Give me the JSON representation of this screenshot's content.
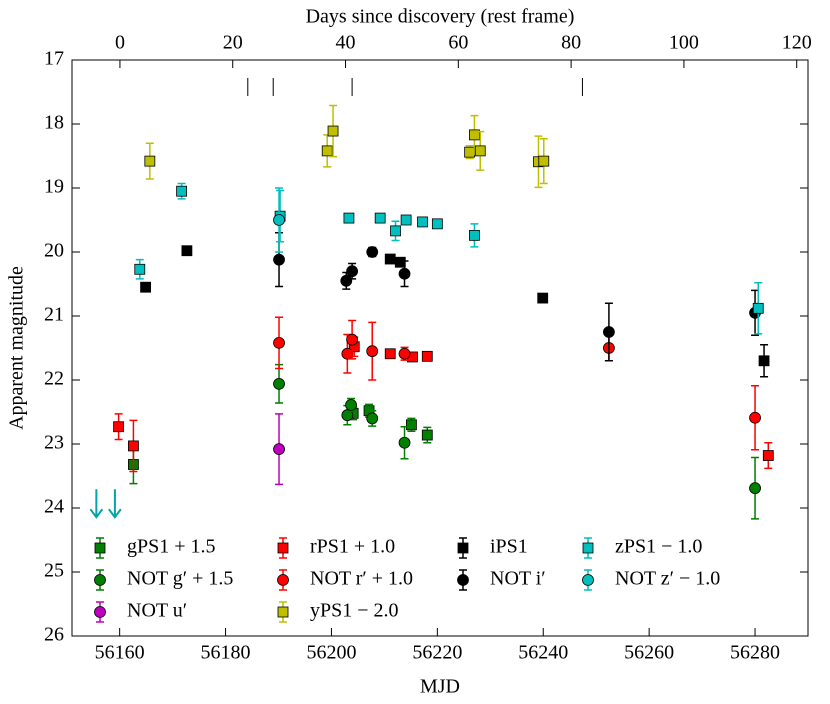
{
  "chart_data": {
    "type": "scatter",
    "xlabel": "MJD",
    "ylabel": "Apparent magnitude",
    "x2label": "Days since discovery (rest frame)",
    "xlim": [
      56151,
      56290
    ],
    "xticks": [
      56160,
      56180,
      56200,
      56220,
      56240,
      56260,
      56280
    ],
    "x2lim": [
      -8.5,
      122
    ],
    "x2ticks": [
      0,
      20,
      40,
      60,
      80,
      100,
      120
    ],
    "ylim": [
      26,
      17
    ],
    "yticks": [
      17,
      18,
      19,
      20,
      21,
      22,
      23,
      24,
      25,
      26
    ],
    "markers_x": [
      56184.2,
      56189.0,
      56203.9,
      56247.4
    ],
    "upper_limits": {
      "color": "#00a5a5",
      "x": [
        56155.6,
        56159.1
      ],
      "values": [
        23.8,
        23.8
      ]
    },
    "series": [
      {
        "name": "gPS1 + 1.5",
        "color": "#007f00",
        "marker": "square",
        "x": [
          56162.6,
          56204.1,
          56207.1,
          56215.1,
          56218.1
        ],
        "values": [
          23.32,
          22.52,
          22.48,
          22.7,
          22.86
        ],
        "errors": [
          0.3,
          0.1,
          0.1,
          0.1,
          0.12
        ]
      },
      {
        "name": "NOT g′ + 1.5",
        "color": "#007f00",
        "marker": "circle",
        "x": [
          56190.1,
          56203.0,
          56203.7,
          56207.7,
          56213.8,
          56280.0
        ],
        "values": [
          22.06,
          22.55,
          22.39,
          22.6,
          22.98,
          23.69
        ],
        "errors": [
          0.3,
          0.15,
          0.1,
          0.12,
          0.25,
          0.48
        ]
      },
      {
        "name": "NOT u′",
        "color": "#bf00bf",
        "marker": "circle",
        "x": [
          56190.1
        ],
        "values": [
          23.08
        ],
        "errors": [
          0.55
        ]
      },
      {
        "name": "rPS1 + 1.0",
        "color": "#ff0000",
        "marker": "square",
        "x": [
          56159.8,
          56162.6,
          56204.3,
          56211.1,
          56215.3,
          56218.1,
          56282.5
        ],
        "values": [
          22.73,
          23.03,
          21.48,
          21.59,
          21.64,
          21.63,
          23.18
        ],
        "errors": [
          0.2,
          0.4,
          0.15,
          0.05,
          0.05,
          0.05,
          0.2
        ]
      },
      {
        "name": "NOT r′ + 1.0",
        "color": "#ff0000",
        "marker": "circle",
        "x": [
          56190.1,
          56203.0,
          56203.9,
          56207.7,
          56213.8,
          56252.4,
          56280.0
        ],
        "values": [
          21.42,
          21.59,
          21.37,
          21.55,
          21.59,
          21.5,
          22.59
        ],
        "errors": [
          0.4,
          0.3,
          0.3,
          0.45,
          0.1,
          0.2,
          0.5
        ]
      },
      {
        "name": "yPS1 − 2.0",
        "color": "#bfbf00",
        "marker": "square",
        "x": [
          56165.7,
          56199.2,
          56200.3,
          56226.1,
          56227.0,
          56228.1,
          56239.1,
          56240.1
        ],
        "values": [
          18.58,
          18.42,
          18.11,
          18.44,
          18.17,
          18.42,
          18.59,
          18.58
        ],
        "errors": [
          0.28,
          0.25,
          0.4,
          0.1,
          0.3,
          0.3,
          0.4,
          0.35
        ]
      },
      {
        "name": "iPS1",
        "color": "#000000",
        "marker": "square",
        "x": [
          56164.9,
          56172.7,
          56211.1,
          56213.0,
          56239.9,
          56281.7
        ],
        "values": [
          20.55,
          19.98,
          20.11,
          20.16,
          20.72,
          21.7
        ],
        "errors": [
          0.05,
          0.05,
          0.05,
          0.05,
          0.05,
          0.25
        ]
      },
      {
        "name": "NOT i′",
        "color": "#000000",
        "marker": "circle",
        "x": [
          56190.1,
          56202.8,
          56203.9,
          56207.7,
          56213.8,
          56252.4,
          56280.0
        ],
        "values": [
          20.12,
          20.45,
          20.3,
          20.0,
          20.34,
          21.25,
          20.95
        ],
        "errors": [
          0.42,
          0.13,
          0.12,
          0.07,
          0.2,
          0.45,
          0.35
        ]
      },
      {
        "name": "zPS1 − 1.0",
        "color": "#00bfbf",
        "marker": "square",
        "x": [
          56163.8,
          56171.7,
          56190.3,
          56203.3,
          56209.2,
          56212.1,
          56214.1,
          56217.2,
          56220.0,
          56227.0,
          56280.6
        ],
        "values": [
          20.27,
          19.05,
          19.44,
          19.47,
          19.47,
          19.67,
          19.5,
          19.53,
          19.56,
          19.74,
          20.88
        ],
        "errors": [
          0.15,
          0.12,
          0.4,
          0.05,
          0.05,
          0.15,
          0.05,
          0.05,
          0.05,
          0.18,
          0.4
        ]
      },
      {
        "name": "NOT z′ − 1.0",
        "color": "#00bfbf",
        "marker": "circle",
        "x": [
          56190.1
        ],
        "values": [
          19.5
        ],
        "errors": [
          0.5
        ]
      }
    ]
  }
}
